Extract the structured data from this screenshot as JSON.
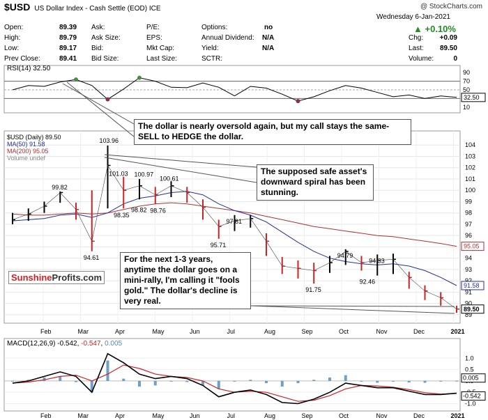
{
  "header": {
    "symbol": "$USD",
    "name": "US Dollar Index - Cash Settle (EOD)",
    "exchange": "ICE",
    "credit": "@ StockCharts.com",
    "date": "Wednesday  6-Jan-2021",
    "change_pct": "+0.10%",
    "up_color": "#228b22"
  },
  "quote": {
    "open_label": "Open:",
    "open": "89.39",
    "high_label": "High:",
    "high": "89.79",
    "low_label": "Low:",
    "low": "89.17",
    "prev_label": "Prev Close:",
    "prev": "89.41",
    "ask_label": "Ask:",
    "ask_size_label": "Ask Size:",
    "bid_label": "Bid:",
    "bid_size_label": "Bid Size:",
    "pe_label": "P/E:",
    "eps_label": "EPS:",
    "mktcap_label": "Mkt Cap:",
    "lastsize_label": "Last Size:",
    "options_label": "Options:",
    "options": "no",
    "div_label": "Annual Dividend:",
    "div": "N/A",
    "yield_label": "Yield:",
    "yield": "N/A",
    "sctr_label": "SCTR:",
    "chg_label": "Chg:",
    "chg": "+0.09",
    "last_label": "Last:",
    "last": "89.50",
    "vol_label": "Volume:",
    "vol": "0"
  },
  "annotations": {
    "rsi_note": "The dollar is nearly oversold again, but my call stays the same- SELL to HEDGE the dollar.",
    "safe_note": "The supposed safe asset's downward spiral has been stunning.",
    "rally_note": "For the next 1-3 years, anytime the dollar goes on a mini-rally, I'm calling it \"fools gold.\" The dollar's decline is very real.",
    "logo_a": "Sunshine",
    "logo_b": "Profits.com"
  },
  "chart_data": [
    {
      "type": "line",
      "panel": "RSI",
      "legend": "RSI(14) 32.50",
      "last_value": 32.5,
      "y_ticks": [
        10,
        30,
        50,
        70,
        90
      ],
      "ylim": [
        0,
        100
      ],
      "reference_lines": [
        30,
        50,
        70
      ],
      "x": [
        0,
        10,
        20,
        30,
        40,
        50,
        60,
        70,
        80,
        90,
        100,
        110,
        120,
        130,
        140,
        150,
        160,
        170,
        180,
        190,
        200,
        210,
        220,
        230,
        240,
        250,
        260,
        270,
        280
      ],
      "values": [
        50,
        60,
        58,
        68,
        74,
        60,
        28,
        52,
        78,
        70,
        56,
        55,
        66,
        56,
        36,
        58,
        54,
        40,
        24,
        34,
        48,
        60,
        54,
        44,
        34,
        38,
        30,
        36,
        32.5
      ],
      "colors": {
        "line": "#000000",
        "overbought": "#4a8a4a",
        "oversold": "#8a3040"
      }
    },
    {
      "type": "candlestick",
      "panel": "price",
      "series_name": "$USD (Daily) 89.50",
      "legend": [
        {
          "label": "$USD (Daily) 89.50",
          "color": "#000000"
        },
        {
          "label": "MA(50) 91.58",
          "color": "#1f2fa0"
        },
        {
          "label": "MA(200) 95.05",
          "color": "#b03030"
        },
        {
          "label": "Volume undef",
          "color": "#888888"
        }
      ],
      "ylim": [
        88.5,
        105
      ],
      "y_ticks": [
        89,
        90,
        91,
        92,
        93,
        94,
        95,
        96,
        97,
        98,
        99,
        100,
        101,
        102,
        103,
        104
      ],
      "x_labels": [
        "Feb",
        "Mar",
        "Apr",
        "May",
        "Jun",
        "Jul",
        "Aug",
        "Sep",
        "Oct",
        "Nov",
        "Dec",
        "2021"
      ],
      "x": [
        0,
        10,
        20,
        30,
        40,
        50,
        60,
        70,
        80,
        90,
        100,
        110,
        120,
        130,
        140,
        150,
        160,
        170,
        180,
        190,
        200,
        210,
        220,
        230,
        240,
        250,
        260,
        270,
        280
      ],
      "close": [
        97.4,
        97.9,
        98.6,
        99.8,
        98.3,
        95.5,
        102.2,
        100.0,
        100.4,
        99.6,
        100.4,
        99.8,
        98.5,
        96.8,
        97.3,
        97.5,
        95.5,
        93.3,
        93.1,
        92.9,
        93.6,
        94.6,
        93.6,
        93.8,
        93.9,
        92.3,
        91.1,
        90.5,
        89.5
      ],
      "high": [
        98.0,
        98.4,
        99.0,
        99.9,
        98.9,
        100.0,
        103.96,
        101.2,
        101.0,
        100.3,
        100.8,
        100.3,
        99.2,
        97.4,
        97.81,
        97.8,
        96.2,
        94.1,
        93.8,
        93.6,
        94.2,
        94.79,
        94.2,
        94.33,
        94.4,
        92.8,
        91.6,
        91.0,
        89.8
      ],
      "low": [
        97.0,
        97.3,
        98.0,
        98.9,
        97.4,
        94.61,
        98.4,
        98.4,
        99.2,
        98.8,
        99.4,
        98.9,
        97.4,
        95.71,
        96.4,
        96.7,
        94.2,
        92.6,
        92.2,
        91.75,
        92.7,
        93.4,
        92.9,
        92.46,
        92.6,
        91.3,
        90.3,
        89.8,
        89.17
      ],
      "ma50": [
        97.3,
        97.4,
        97.5,
        97.8,
        97.9,
        97.6,
        98.0,
        98.8,
        99.3,
        99.5,
        99.8,
        99.9,
        99.6,
        98.8,
        98.2,
        97.8,
        97.2,
        96.3,
        95.4,
        94.6,
        94.0,
        93.7,
        93.5,
        93.4,
        93.5,
        93.3,
        92.9,
        92.3,
        91.58
      ],
      "ma200": [
        97.9,
        97.8,
        97.8,
        97.9,
        98.0,
        97.9,
        98.0,
        98.3,
        98.6,
        98.8,
        98.9,
        98.8,
        98.6,
        98.4,
        98.2,
        98.0,
        97.7,
        97.4,
        97.1,
        96.8,
        96.6,
        96.4,
        96.2,
        96.0,
        95.9,
        95.7,
        95.5,
        95.3,
        95.05
      ],
      "labels": [
        {
          "text": "99.82",
          "x": 30,
          "y": 99.82
        },
        {
          "text": "94.61",
          "x": 50,
          "y": 94.61
        },
        {
          "text": "103.96",
          "x": 60,
          "y": 103.96
        },
        {
          "text": "101.03",
          "x": 66,
          "y": 101.03
        },
        {
          "text": "98.35",
          "x": 69,
          "y": 98.35
        },
        {
          "text": "100.97",
          "x": 82,
          "y": 100.97
        },
        {
          "text": "98.82",
          "x": 80,
          "y": 98.82
        },
        {
          "text": "98.76",
          "x": 92,
          "y": 98.76
        },
        {
          "text": "100.61",
          "x": 98,
          "y": 100.61
        },
        {
          "text": "97.81",
          "x": 140,
          "y": 97.81
        },
        {
          "text": "95.71",
          "x": 130,
          "y": 95.71
        },
        {
          "text": "94.79",
          "x": 210,
          "y": 94.79
        },
        {
          "text": "91.75",
          "x": 190,
          "y": 91.75
        },
        {
          "text": "94.33",
          "x": 230,
          "y": 94.33
        },
        {
          "text": "92.46",
          "x": 224,
          "y": 92.46
        }
      ],
      "price_tags": [
        {
          "text": "95.05",
          "value": 95.05,
          "color": "#b03030"
        },
        {
          "text": "91.58",
          "value": 91.58,
          "color": "#1f2fa0"
        },
        {
          "text": "89.50",
          "value": 89.5,
          "color": "#000000"
        }
      ]
    },
    {
      "type": "line",
      "panel": "MACD",
      "legend_prefix": "MACD(12,26,9)",
      "legend_macd": "-0.542",
      "legend_signal": "-0.547",
      "legend_hist": "0.005",
      "ylim": [
        -1.2,
        1.5
      ],
      "y_ticks": [
        -1.0,
        -0.5,
        0.0,
        0.5,
        1.0
      ],
      "x_labels": [
        "Feb",
        "Mar",
        "Apr",
        "May",
        "Jun",
        "Jul",
        "Aug",
        "Sep",
        "Oct",
        "Nov",
        "Dec",
        "2021"
      ],
      "x": [
        0,
        10,
        20,
        30,
        40,
        50,
        60,
        70,
        80,
        90,
        100,
        110,
        120,
        130,
        140,
        150,
        160,
        170,
        180,
        190,
        200,
        210,
        220,
        230,
        240,
        250,
        260,
        270,
        280
      ],
      "macd": [
        -0.1,
        0.0,
        0.2,
        0.4,
        0.2,
        -0.5,
        1.2,
        0.8,
        0.3,
        0.1,
        0.2,
        0.1,
        -0.2,
        -0.7,
        -0.5,
        -0.4,
        -0.6,
        -0.95,
        -1.0,
        -0.8,
        -0.5,
        -0.1,
        -0.2,
        -0.3,
        -0.3,
        -0.45,
        -0.6,
        -0.6,
        -0.542
      ],
      "signal": [
        -0.1,
        -0.05,
        0.05,
        0.2,
        0.25,
        0.0,
        0.3,
        0.7,
        0.55,
        0.3,
        0.2,
        0.15,
        0.0,
        -0.35,
        -0.5,
        -0.45,
        -0.5,
        -0.7,
        -0.9,
        -0.85,
        -0.65,
        -0.35,
        -0.2,
        -0.22,
        -0.28,
        -0.38,
        -0.52,
        -0.58,
        -0.547
      ],
      "colors": {
        "macd": "#000000",
        "signal": "#cc2222",
        "hist": "#4a8ab8"
      },
      "value_tags": [
        {
          "text": "0.005",
          "value": 0.005
        },
        {
          "text": "-0.542",
          "value": -0.542
        }
      ]
    }
  ]
}
